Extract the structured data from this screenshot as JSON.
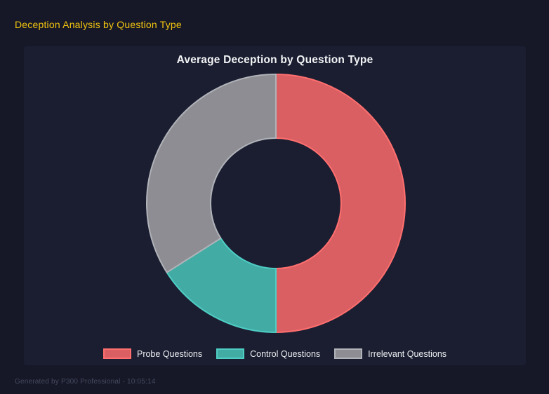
{
  "page": {
    "title": "Deception Analysis by Question Type",
    "footer": "Generated by P300 Professional - 10:05:14",
    "colors": {
      "page_background": "#161827",
      "panel_background": "#1b1e31",
      "page_title": "#f1c40f",
      "chart_title": "#f2f3f5",
      "legend_text": "#eceef1",
      "footer_text": "#454a5e"
    }
  },
  "chart_data": {
    "type": "doughnut",
    "title": "Average Deception by Question Type",
    "cutout_percent": 50,
    "start_angle_deg": 0,
    "direction": "clockwise",
    "legend_position": "bottom",
    "grid": false,
    "categories": [
      "Probe Questions",
      "Control Questions",
      "Irrelevant Questions"
    ],
    "values_percent": [
      50,
      16,
      34
    ],
    "segments": [
      {
        "label": "Probe Questions",
        "percent": 50,
        "fill": "#d95f62",
        "border": "#ff6f6f"
      },
      {
        "label": "Control Questions",
        "percent": 16,
        "fill": "#42aba4",
        "border": "#4ecdc4"
      },
      {
        "label": "Irrelevant Questions",
        "percent": 34,
        "fill": "#8d8d93",
        "border": "#b0b3b8"
      }
    ]
  }
}
